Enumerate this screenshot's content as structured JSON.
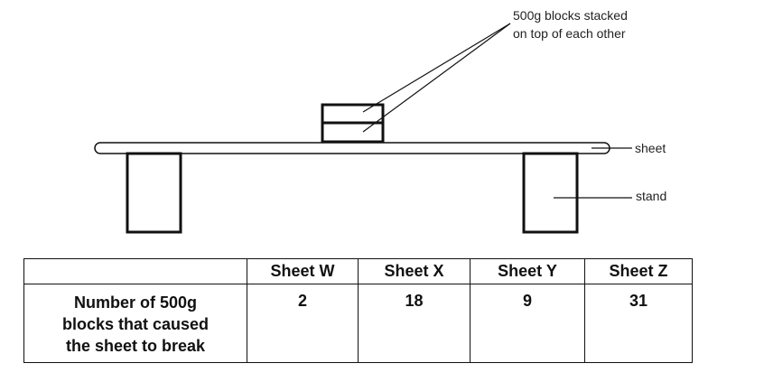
{
  "diagram": {
    "labels": {
      "blocks_line1": "500g blocks stacked",
      "blocks_line2": "on top of each other",
      "sheet": "sheet",
      "stand": "stand"
    }
  },
  "table": {
    "headers": [
      "",
      "Sheet W",
      "Sheet X",
      "Sheet Y",
      "Sheet Z"
    ],
    "row_label_lines": [
      "Number of 500g",
      "blocks that caused",
      "the sheet to break"
    ],
    "values": [
      "2",
      "18",
      "9",
      "31"
    ]
  }
}
